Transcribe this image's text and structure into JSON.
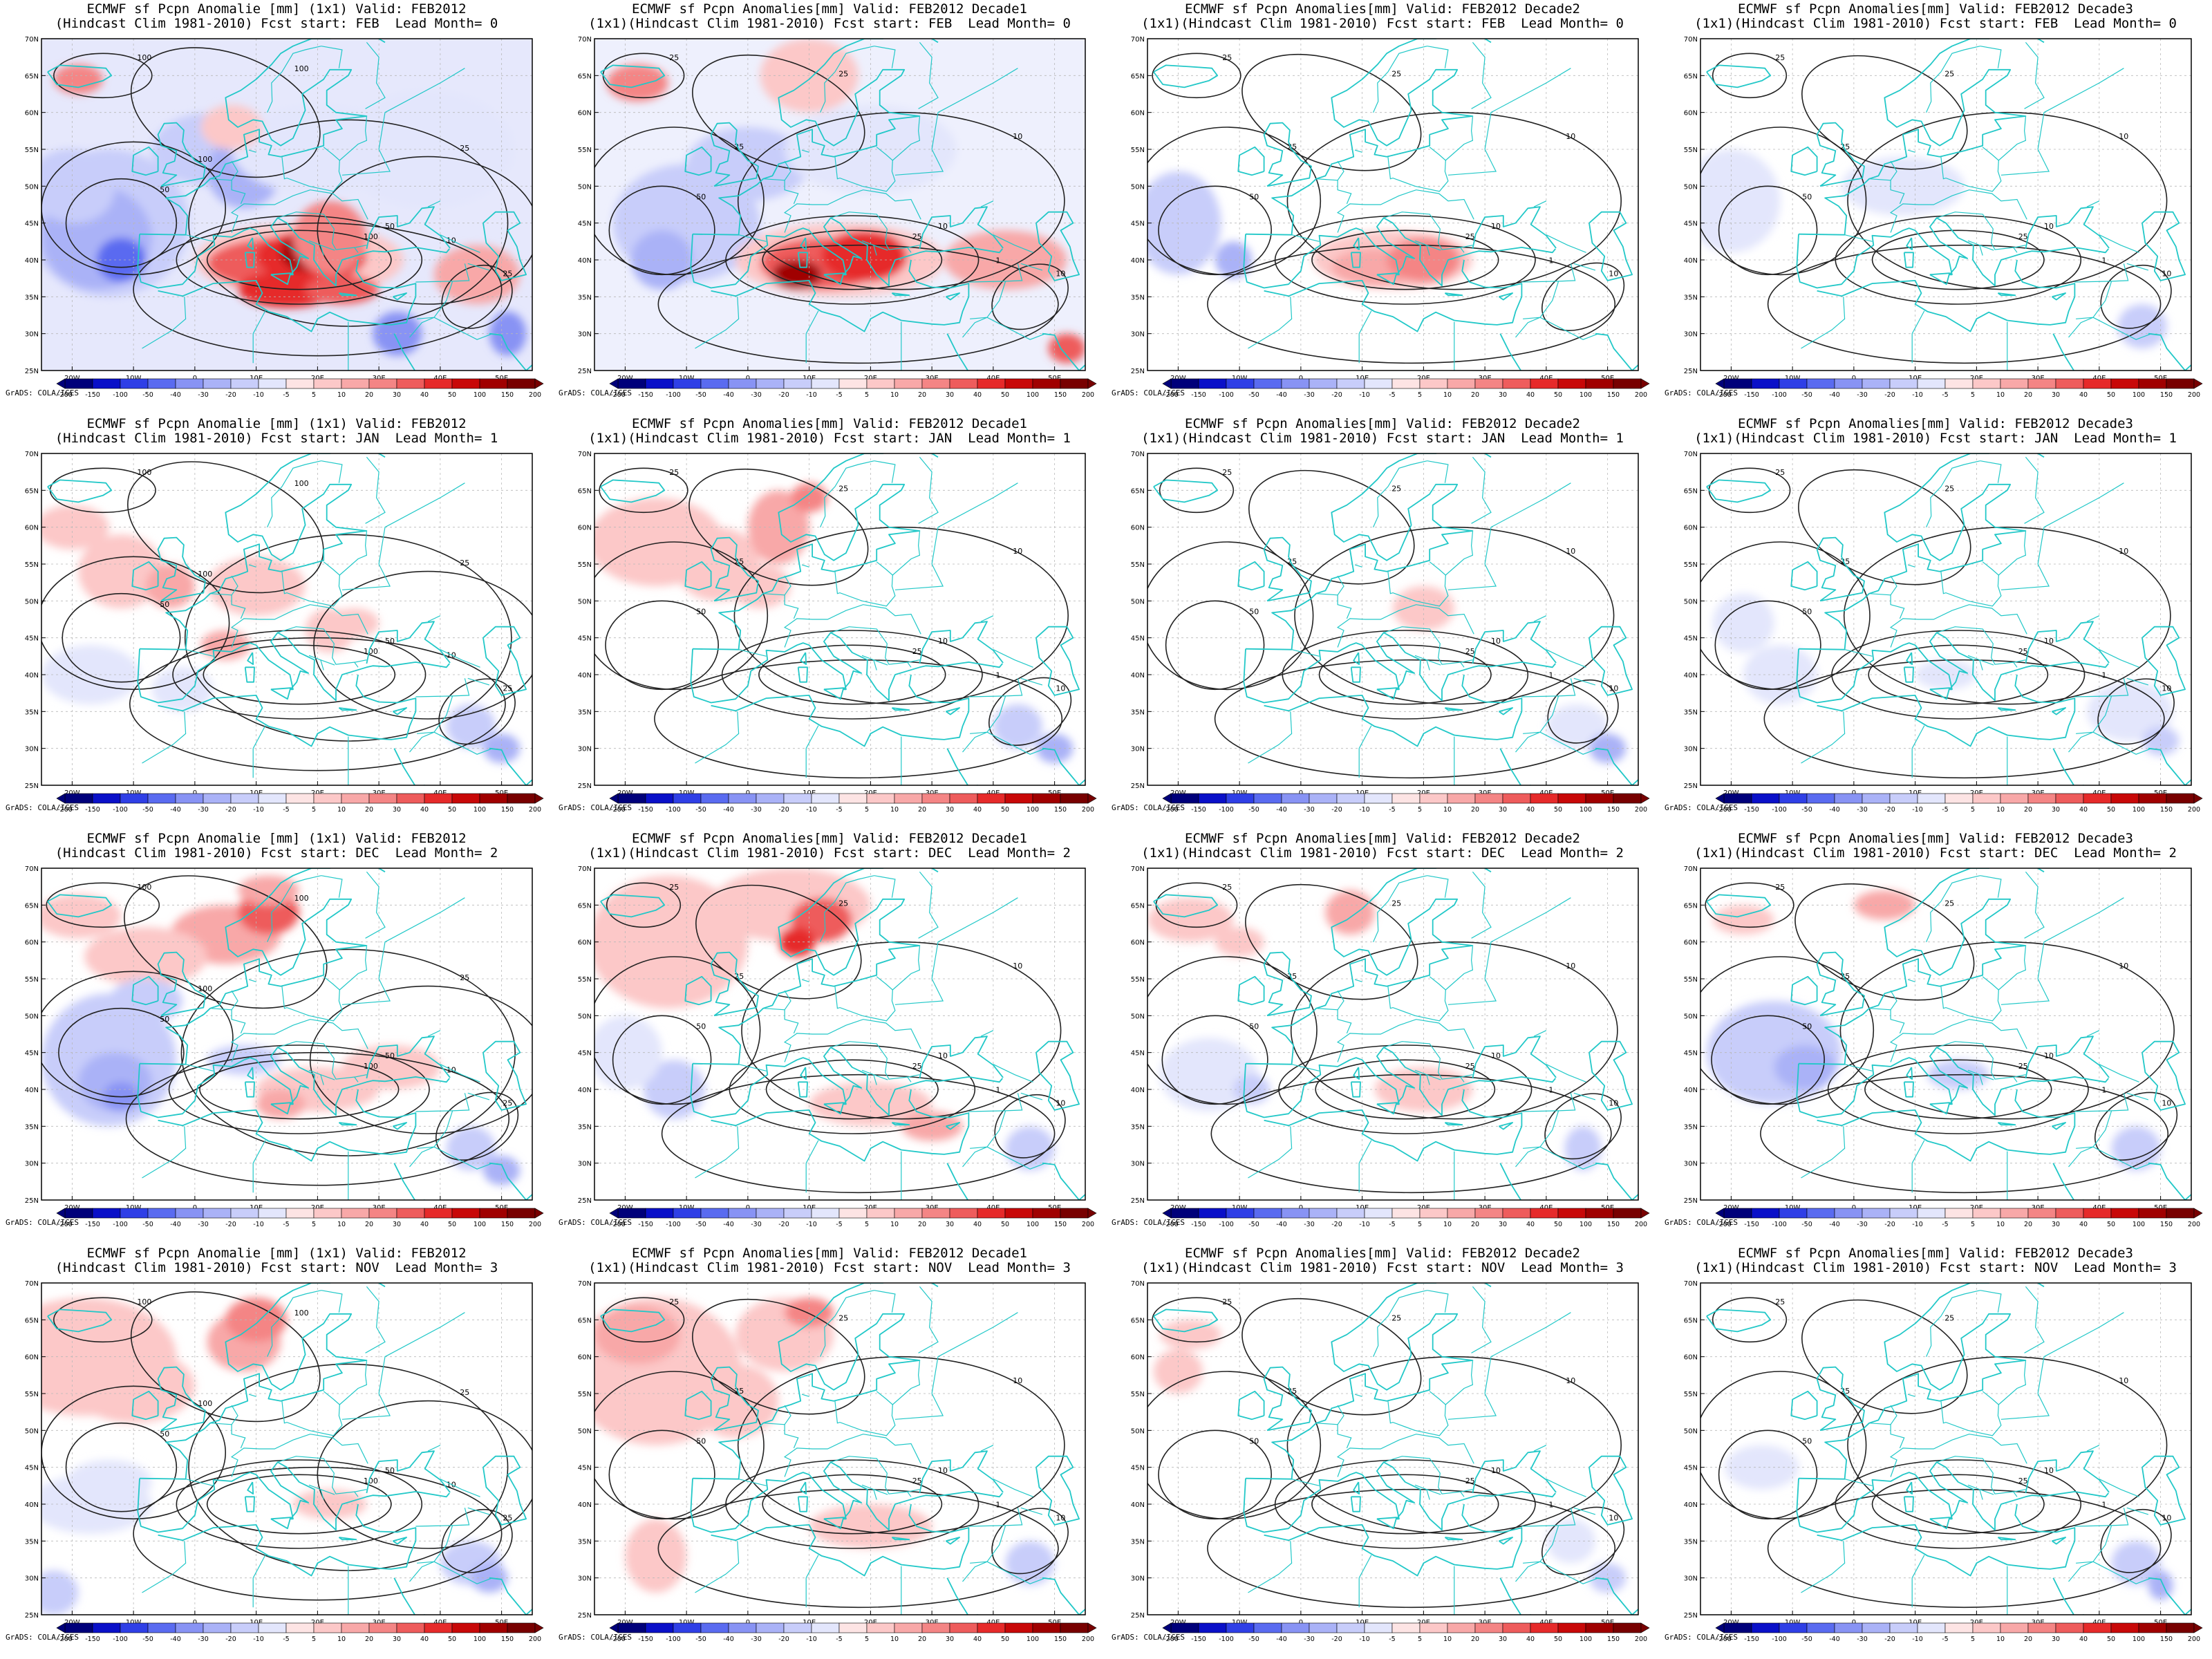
{
  "colors": {
    "coast": "#22c8c8",
    "contour": "#222222",
    "neg_scale": [
      "#00007a",
      "#0a10c8",
      "#2f3fe6",
      "#5a6bf0",
      "#8893f4",
      "#aab2f7",
      "#c8cdfa",
      "#e3e6fc"
    ],
    "pos_scale": [
      "#fde4e4",
      "#fcc8c8",
      "#f8a8a8",
      "#f48585",
      "#ee5c5c",
      "#e62a2a",
      "#c80808",
      "#a00000",
      "#780000"
    ]
  },
  "map": {
    "lon_labels": [
      "20W",
      "10W",
      "0",
      "10E",
      "20E",
      "30E",
      "40E",
      "50E"
    ],
    "lat_labels": [
      "70N",
      "65N",
      "60N",
      "55N",
      "50N",
      "45N",
      "40N",
      "35N",
      "30N",
      "25N"
    ]
  },
  "colorbar": {
    "labels": [
      "-200",
      "-150",
      "-100",
      "-50",
      "-40",
      "-30",
      "-20",
      "-10",
      "-5",
      "5",
      "10",
      "20",
      "30",
      "40",
      "50",
      "100",
      "150",
      "200"
    ],
    "credit": "GrADS: COLA/IGES"
  },
  "panels": [
    {
      "line1": "ECMWF sf Pcpn Anomalie [mm] (1x1) Valid: FEB2012",
      "line2": "(Hindcast Clim 1981-2010) Fcst start: FEB  Lead Month= 0",
      "style": "monthly-feb"
    },
    {
      "line1": "ECMWF sf Pcpn Anomalies[mm] Valid: FEB2012 Decade1",
      "line2": "(1x1)(Hindcast Clim 1981-2010) Fcst start: FEB  Lead Month= 0",
      "style": "d1-feb"
    },
    {
      "line1": "ECMWF sf Pcpn Anomalies[mm] Valid: FEB2012 Decade2",
      "line2": "(1x1)(Hindcast Clim 1981-2010) Fcst start: FEB  Lead Month= 0",
      "style": "d2-feb"
    },
    {
      "line1": "ECMWF sf Pcpn Anomalies[mm] Valid: FEB2012 Decade3",
      "line2": "(1x1)(Hindcast Clim 1981-2010) Fcst start: FEB  Lead Month= 0",
      "style": "d3-feb"
    },
    {
      "line1": "ECMWF sf Pcpn Anomalie [mm] (1x1) Valid: FEB2012",
      "line2": "(Hindcast Clim 1981-2010) Fcst start: JAN  Lead Month= 1",
      "style": "monthly-jan"
    },
    {
      "line1": "ECMWF sf Pcpn Anomalies[mm] Valid: FEB2012 Decade1",
      "line2": "(1x1)(Hindcast Clim 1981-2010) Fcst start: JAN  Lead Month= 1",
      "style": "d1-jan"
    },
    {
      "line1": "ECMWF sf Pcpn Anomalies[mm] Valid: FEB2012 Decade2",
      "line2": "(1x1)(Hindcast Clim 1981-2010) Fcst start: JAN  Lead Month= 1",
      "style": "d2-jan"
    },
    {
      "line1": "ECMWF sf Pcpn Anomalies[mm] Valid: FEB2012 Decade3",
      "line2": "(1x1)(Hindcast Clim 1981-2010) Fcst start: JAN  Lead Month= 1",
      "style": "d3-jan"
    },
    {
      "line1": "ECMWF sf Pcpn Anomalie [mm] (1x1) Valid: FEB2012",
      "line2": "(Hindcast Clim 1981-2010) Fcst start: DEC  Lead Month= 2",
      "style": "monthly-dec"
    },
    {
      "line1": "ECMWF sf Pcpn Anomalies[mm] Valid: FEB2012 Decade1",
      "line2": "(1x1)(Hindcast Clim 1981-2010) Fcst start: DEC  Lead Month= 2",
      "style": "d1-dec"
    },
    {
      "line1": "ECMWF sf Pcpn Anomalies[mm] Valid: FEB2012 Decade2",
      "line2": "(1x1)(Hindcast Clim 1981-2010) Fcst start: DEC  Lead Month= 2",
      "style": "d2-dec"
    },
    {
      "line1": "ECMWF sf Pcpn Anomalies[mm] Valid: FEB2012 Decade3",
      "line2": "(1x1)(Hindcast Clim 1981-2010) Fcst start: DEC  Lead Month= 2",
      "style": "d3-dec"
    },
    {
      "line1": "ECMWF sf Pcpn Anomalie [mm] (1x1) Valid: FEB2012",
      "line2": "(Hindcast Clim 1981-2010) Fcst start: NOV  Lead Month= 3",
      "style": "monthly-nov"
    },
    {
      "line1": "ECMWF sf Pcpn Anomalies[mm] Valid: FEB2012 Decade1",
      "line2": "(1x1)(Hindcast Clim 1981-2010) Fcst start: NOV  Lead Month= 3",
      "style": "d1-nov"
    },
    {
      "line1": "ECMWF sf Pcpn Anomalies[mm] Valid: FEB2012 Decade2",
      "line2": "(1x1)(Hindcast Clim 1981-2010) Fcst start: NOV  Lead Month= 3",
      "style": "d2-nov"
    },
    {
      "line1": "ECMWF sf Pcpn Anomalies[mm] Valid: FEB2012 Decade3",
      "line2": "(1x1)(Hindcast Clim 1981-2010) Fcst start: NOV  Lead Month= 3",
      "style": "d3-nov"
    }
  ]
}
